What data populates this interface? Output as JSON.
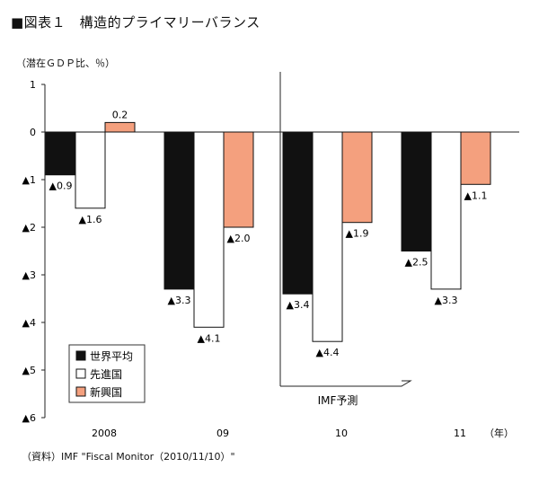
{
  "title": "■図表１　構造的プライマリーバランス",
  "unit_label": "（潜在ＧＤＰ比、％）",
  "source": "（資料）IMF \"Fiscal Monitor（2010/11/10）\"",
  "chart_data": {
    "type": "bar",
    "categories": [
      "2008",
      "09",
      "10",
      "11"
    ],
    "x_unit": "（年）",
    "series": [
      {
        "name": "世界平均",
        "values": [
          -0.9,
          -3.3,
          -3.4,
          -2.5
        ],
        "labels": [
          "▲0.9",
          "▲3.3",
          "▲3.4",
          "▲2.5"
        ],
        "fill": "#111111"
      },
      {
        "name": "先進国",
        "values": [
          -1.6,
          -4.1,
          -4.4,
          -3.3
        ],
        "labels": [
          "▲1.6",
          "▲4.1",
          "▲4.4",
          "▲3.3"
        ],
        "fill": "#ffffff"
      },
      {
        "name": "新興国",
        "values": [
          0.2,
          -2.0,
          -1.9,
          -1.1
        ],
        "labels": [
          "0.2",
          "▲2.0",
          "▲1.9",
          "▲1.1"
        ],
        "fill": "#f4a07e"
      }
    ],
    "ylim": [
      -6,
      1
    ],
    "yticks": [
      1,
      0,
      -1,
      -2,
      -3,
      -4,
      -5,
      -6
    ],
    "ytick_labels": [
      "1",
      "0",
      "▲1",
      "▲2",
      "▲3",
      "▲4",
      "▲5",
      "▲6"
    ],
    "forecast_label": "IMF予測",
    "forecast_from_category": "10",
    "legend_position": "bottom-left"
  }
}
